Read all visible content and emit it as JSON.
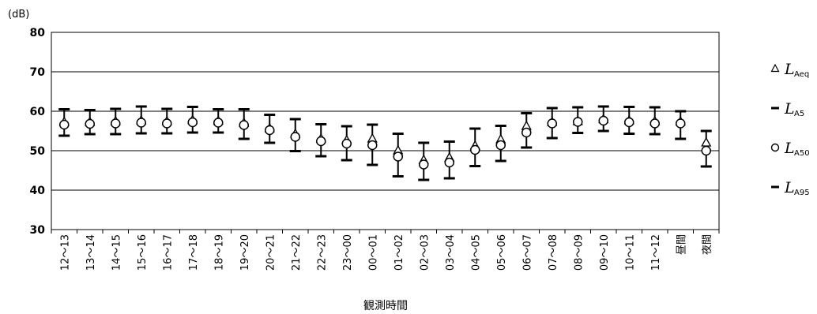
{
  "chart_data": {
    "type": "scatter",
    "unit_label": "(dB)",
    "xlabel": "観測時間",
    "ylabel": "",
    "ylim": [
      30,
      80
    ],
    "yticks": [
      30,
      40,
      50,
      60,
      70,
      80
    ],
    "grid": "horizontal",
    "legend_position": "right",
    "categories": [
      "12～13",
      "13～14",
      "14～15",
      "15～16",
      "16～17",
      "17～18",
      "18～19",
      "19～20",
      "20～21",
      "21～22",
      "22～23",
      "23～00",
      "00～01",
      "01～02",
      "02～03",
      "03～04",
      "04～05",
      "05～06",
      "06～07",
      "07～08",
      "08～09",
      "09～10",
      "10～11",
      "11～12",
      "昼間",
      "夜間"
    ],
    "series": [
      {
        "name": "LAeq",
        "marker": "triangle",
        "values": [
          57.2,
          57.2,
          57.4,
          57.6,
          57.4,
          57.7,
          57.5,
          57.0,
          55.6,
          54.2,
          53.0,
          52.6,
          53.0,
          50.0,
          47.6,
          48.2,
          51.2,
          52.8,
          56.2,
          57.2,
          57.4,
          57.9,
          57.6,
          57.4,
          57.3,
          52.0
        ]
      },
      {
        "name": "LA5",
        "marker": "dash",
        "values": [
          60.5,
          60.3,
          60.6,
          61.2,
          60.6,
          61.1,
          60.5,
          60.5,
          59.1,
          58.0,
          56.7,
          56.2,
          56.6,
          54.3,
          52.0,
          52.3,
          55.6,
          56.3,
          59.5,
          60.8,
          61.0,
          61.2,
          61.1,
          61.0,
          60.0,
          55.0
        ]
      },
      {
        "name": "LA50",
        "marker": "circle",
        "values": [
          56.6,
          56.8,
          56.9,
          57.1,
          56.9,
          57.2,
          57.1,
          56.5,
          55.2,
          53.5,
          52.4,
          51.8,
          51.4,
          48.5,
          46.5,
          47.0,
          50.2,
          51.4,
          54.6,
          56.9,
          57.3,
          57.6,
          57.2,
          56.9,
          56.9,
          50.0
        ]
      },
      {
        "name": "LA95",
        "marker": "dash",
        "values": [
          53.8,
          54.2,
          54.2,
          54.4,
          54.4,
          54.6,
          54.6,
          53.0,
          52.0,
          49.9,
          48.6,
          47.6,
          46.4,
          43.5,
          42.6,
          43.0,
          46.1,
          47.4,
          50.8,
          53.2,
          54.5,
          55.0,
          54.3,
          54.2,
          53.0,
          46.0
        ]
      }
    ],
    "legend": [
      {
        "marker": "triangle",
        "L": "L",
        "sub": "Aeq"
      },
      {
        "marker": "dash",
        "L": "L",
        "sub": "A5"
      },
      {
        "marker": "circle",
        "L": "L",
        "sub": "A50"
      },
      {
        "marker": "dash",
        "L": "L",
        "sub": "A95"
      }
    ]
  }
}
